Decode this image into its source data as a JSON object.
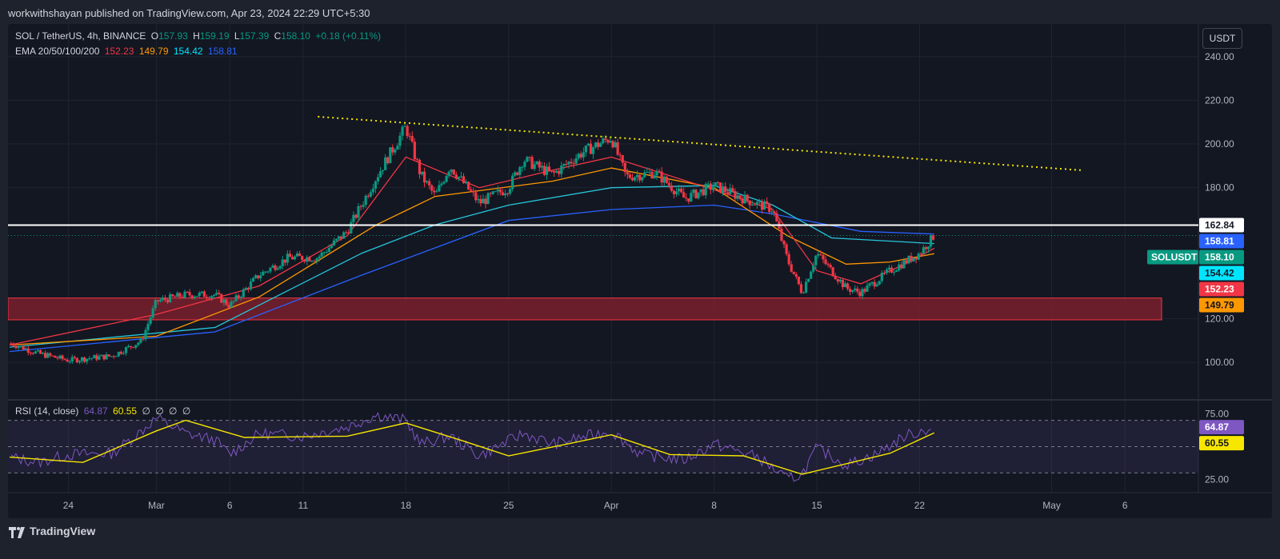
{
  "header": {
    "publisher_line": "workwithshayan published on TradingView.com, Apr 23, 2024 22:29 UTC+5:30"
  },
  "symbol": {
    "name": "SOL / TetherUS, 4h, BINANCE",
    "o_label": "O",
    "o": "157.93",
    "h_label": "H",
    "h": "159.19",
    "l_label": "L",
    "l": "157.39",
    "c_label": "C",
    "c": "158.10",
    "change": "+0.18 (+0.11%)"
  },
  "ema": {
    "label": "EMA 20/50/100/200",
    "values": [
      "152.23",
      "149.79",
      "154.42",
      "158.81"
    ],
    "colors": [
      "#f23645",
      "#ff9800",
      "#00bcd4",
      "#2962ff"
    ]
  },
  "rsi": {
    "label": "RSI (14, close)",
    "rsi_value": "64.87",
    "ma_value": "60.55",
    "extra": [
      "∅",
      "∅",
      "∅",
      "∅"
    ],
    "rsi_color": "#7e57c2",
    "ma_color": "#f7e600"
  },
  "currency_button": "USDT",
  "footer": {
    "brand": "TradingView"
  },
  "colors": {
    "up": "#089981",
    "down": "#f23645",
    "trendline": "#f7e600",
    "zone_fill": "#7a1f2b",
    "zone_border": "#f23645"
  },
  "chart_data": [
    {
      "type": "candlestick",
      "title": "SOL / TetherUS, 4h, BINANCE",
      "y_ticks": [
        "240.00",
        "220.00",
        "200.00",
        "180.00",
        "120.00",
        "100.00"
      ],
      "x_ticks": [
        "24",
        "Mar",
        "6",
        "11",
        "18",
        "25",
        "Apr",
        "8",
        "15",
        "22",
        "May",
        "6"
      ],
      "x_tick_dates": [
        "2024-02-24",
        "2024-03-01",
        "2024-03-06",
        "2024-03-11",
        "2024-03-18",
        "2024-03-25",
        "2024-04-01",
        "2024-04-08",
        "2024-04-15",
        "2024-04-22",
        "2024-05-01",
        "2024-05-06"
      ],
      "ylim": [
        88,
        252
      ],
      "xlim": [
        "2024-02-20",
        "2024-05-11"
      ],
      "close_path": [
        [
          "2024-02-20",
          109
        ],
        [
          "2024-02-22",
          104
        ],
        [
          "2024-02-24",
          101
        ],
        [
          "2024-02-27",
          103
        ],
        [
          "2024-02-29",
          110
        ],
        [
          "2024-03-01",
          128
        ],
        [
          "2024-03-03",
          131
        ],
        [
          "2024-03-05",
          131
        ],
        [
          "2024-03-06",
          126
        ],
        [
          "2024-03-08",
          140
        ],
        [
          "2024-03-10",
          148
        ],
        [
          "2024-03-12",
          148
        ],
        [
          "2024-03-14",
          160
        ],
        [
          "2024-03-16",
          185
        ],
        [
          "2024-03-18",
          208
        ],
        [
          "2024-03-19",
          186
        ],
        [
          "2024-03-20",
          176
        ],
        [
          "2024-03-21",
          190
        ],
        [
          "2024-03-23",
          173
        ],
        [
          "2024-03-25",
          180
        ],
        [
          "2024-03-26",
          193
        ],
        [
          "2024-03-28",
          186
        ],
        [
          "2024-03-30",
          196
        ],
        [
          "2024-04-01",
          203
        ],
        [
          "2024-04-02",
          185
        ],
        [
          "2024-04-04",
          187
        ],
        [
          "2024-04-06",
          175
        ],
        [
          "2024-04-08",
          181
        ],
        [
          "2024-04-10",
          175
        ],
        [
          "2024-04-12",
          170
        ],
        [
          "2024-04-13",
          147
        ],
        [
          "2024-04-14",
          132
        ],
        [
          "2024-04-15",
          150
        ],
        [
          "2024-04-17",
          134
        ],
        [
          "2024-04-18",
          132
        ],
        [
          "2024-04-20",
          142
        ],
        [
          "2024-04-22",
          150
        ],
        [
          "2024-04-23",
          158.1
        ]
      ],
      "ema_200_path": [
        [
          "2024-02-20",
          105
        ],
        [
          "2024-03-05",
          114
        ],
        [
          "2024-03-15",
          140
        ],
        [
          "2024-03-25",
          165
        ],
        [
          "2024-04-01",
          170
        ],
        [
          "2024-04-08",
          172
        ],
        [
          "2024-04-12",
          168
        ],
        [
          "2024-04-18",
          160
        ],
        [
          "2024-04-23",
          158.81
        ]
      ],
      "ema_100_path": [
        [
          "2024-02-20",
          107
        ],
        [
          "2024-03-05",
          116
        ],
        [
          "2024-03-15",
          150
        ],
        [
          "2024-03-20",
          163
        ],
        [
          "2024-03-25",
          172
        ],
        [
          "2024-04-01",
          180
        ],
        [
          "2024-04-08",
          181
        ],
        [
          "2024-04-12",
          172
        ],
        [
          "2024-04-16",
          157
        ],
        [
          "2024-04-23",
          154.42
        ]
      ],
      "ema_50_path": [
        [
          "2024-02-20",
          108
        ],
        [
          "2024-03-01",
          112
        ],
        [
          "2024-03-08",
          130
        ],
        [
          "2024-03-16",
          163
        ],
        [
          "2024-03-20",
          176
        ],
        [
          "2024-03-28",
          183
        ],
        [
          "2024-04-01",
          189
        ],
        [
          "2024-04-08",
          180
        ],
        [
          "2024-04-13",
          158
        ],
        [
          "2024-04-17",
          145
        ],
        [
          "2024-04-20",
          146
        ],
        [
          "2024-04-23",
          149.79
        ]
      ],
      "ema_20_path": [
        [
          "2024-02-20",
          108
        ],
        [
          "2024-03-01",
          122
        ],
        [
          "2024-03-08",
          135
        ],
        [
          "2024-03-14",
          158
        ],
        [
          "2024-03-18",
          194
        ],
        [
          "2024-03-23",
          180
        ],
        [
          "2024-03-28",
          188
        ],
        [
          "2024-04-01",
          194
        ],
        [
          "2024-04-08",
          179
        ],
        [
          "2024-04-12",
          170
        ],
        [
          "2024-04-15",
          142
        ],
        [
          "2024-04-18",
          136
        ],
        [
          "2024-04-21",
          145
        ],
        [
          "2024-04-23",
          152.23
        ]
      ],
      "trendline": [
        [
          "2024-03-12",
          212.5
        ],
        [
          "2024-05-03",
          188
        ]
      ],
      "horizontal_line": 162.84,
      "support_zone": [
        119.5,
        129.5
      ],
      "last_price_line": 158.1,
      "price_labels": [
        {
          "text": "162.84",
          "value": 162.84,
          "bg": "#ffffff",
          "fg": "#131722"
        },
        {
          "text": "158.81",
          "value": 158.81,
          "bg": "#2962ff",
          "fg": "#ffffff"
        },
        {
          "text": "SOLUSDT",
          "value": 158.1,
          "bg": "#089981",
          "fg": "#ffffff"
        },
        {
          "text": "158.10",
          "value": 158.1,
          "bg": "#089981",
          "fg": "#ffffff"
        },
        {
          "text": "154.42",
          "value": 154.42,
          "bg": "#00e5ff",
          "fg": "#131722"
        },
        {
          "text": "152.23",
          "value": 152.23,
          "bg": "#f23645",
          "fg": "#ffffff"
        },
        {
          "text": "149.79",
          "value": 149.79,
          "bg": "#ff9800",
          "fg": "#131722"
        }
      ]
    },
    {
      "type": "line",
      "title": "RSI (14, close)",
      "y_ticks": [
        "75.00",
        "25.00"
      ],
      "bands": [
        70,
        50,
        30
      ],
      "ylim": [
        15,
        85
      ],
      "rsi_path": [
        [
          "2024-02-20",
          42
        ],
        [
          "2024-02-22",
          38
        ],
        [
          "2024-02-24",
          44
        ],
        [
          "2024-02-27",
          45
        ],
        [
          "2024-02-29",
          62
        ],
        [
          "2024-03-01",
          72
        ],
        [
          "2024-03-03",
          60
        ],
        [
          "2024-03-05",
          55
        ],
        [
          "2024-03-06",
          44
        ],
        [
          "2024-03-08",
          60
        ],
        [
          "2024-03-11",
          58
        ],
        [
          "2024-03-14",
          65
        ],
        [
          "2024-03-16",
          74
        ],
        [
          "2024-03-18",
          70
        ],
        [
          "2024-03-19",
          52
        ],
        [
          "2024-03-21",
          58
        ],
        [
          "2024-03-23",
          43
        ],
        [
          "2024-03-26",
          60
        ],
        [
          "2024-03-28",
          52
        ],
        [
          "2024-04-01",
          62
        ],
        [
          "2024-04-03",
          44
        ],
        [
          "2024-04-06",
          40
        ],
        [
          "2024-04-08",
          52
        ],
        [
          "2024-04-11",
          42
        ],
        [
          "2024-04-13",
          25
        ],
        [
          "2024-04-14",
          29
        ],
        [
          "2024-04-15",
          49
        ],
        [
          "2024-04-17",
          36
        ],
        [
          "2024-04-19",
          44
        ],
        [
          "2024-04-21",
          58
        ],
        [
          "2024-04-23",
          64.87
        ]
      ],
      "ma_path": [
        [
          "2024-02-20",
          42
        ],
        [
          "2024-02-25",
          38
        ],
        [
          "2024-03-01",
          62
        ],
        [
          "2024-03-03",
          70
        ],
        [
          "2024-03-07",
          57
        ],
        [
          "2024-03-14",
          58
        ],
        [
          "2024-03-18",
          68
        ],
        [
          "2024-03-22",
          54
        ],
        [
          "2024-03-25",
          43
        ],
        [
          "2024-03-29",
          52
        ],
        [
          "2024-04-01",
          59
        ],
        [
          "2024-04-05",
          44
        ],
        [
          "2024-04-10",
          43
        ],
        [
          "2024-04-14",
          29
        ],
        [
          "2024-04-17",
          37
        ],
        [
          "2024-04-20",
          45
        ],
        [
          "2024-04-23",
          60.55
        ]
      ],
      "value_labels": [
        {
          "text": "64.87",
          "value": 64.87,
          "bg": "#7e57c2",
          "fg": "#ffffff"
        },
        {
          "text": "60.55",
          "value": 60.55,
          "bg": "#f7e600",
          "fg": "#131722"
        }
      ]
    }
  ]
}
